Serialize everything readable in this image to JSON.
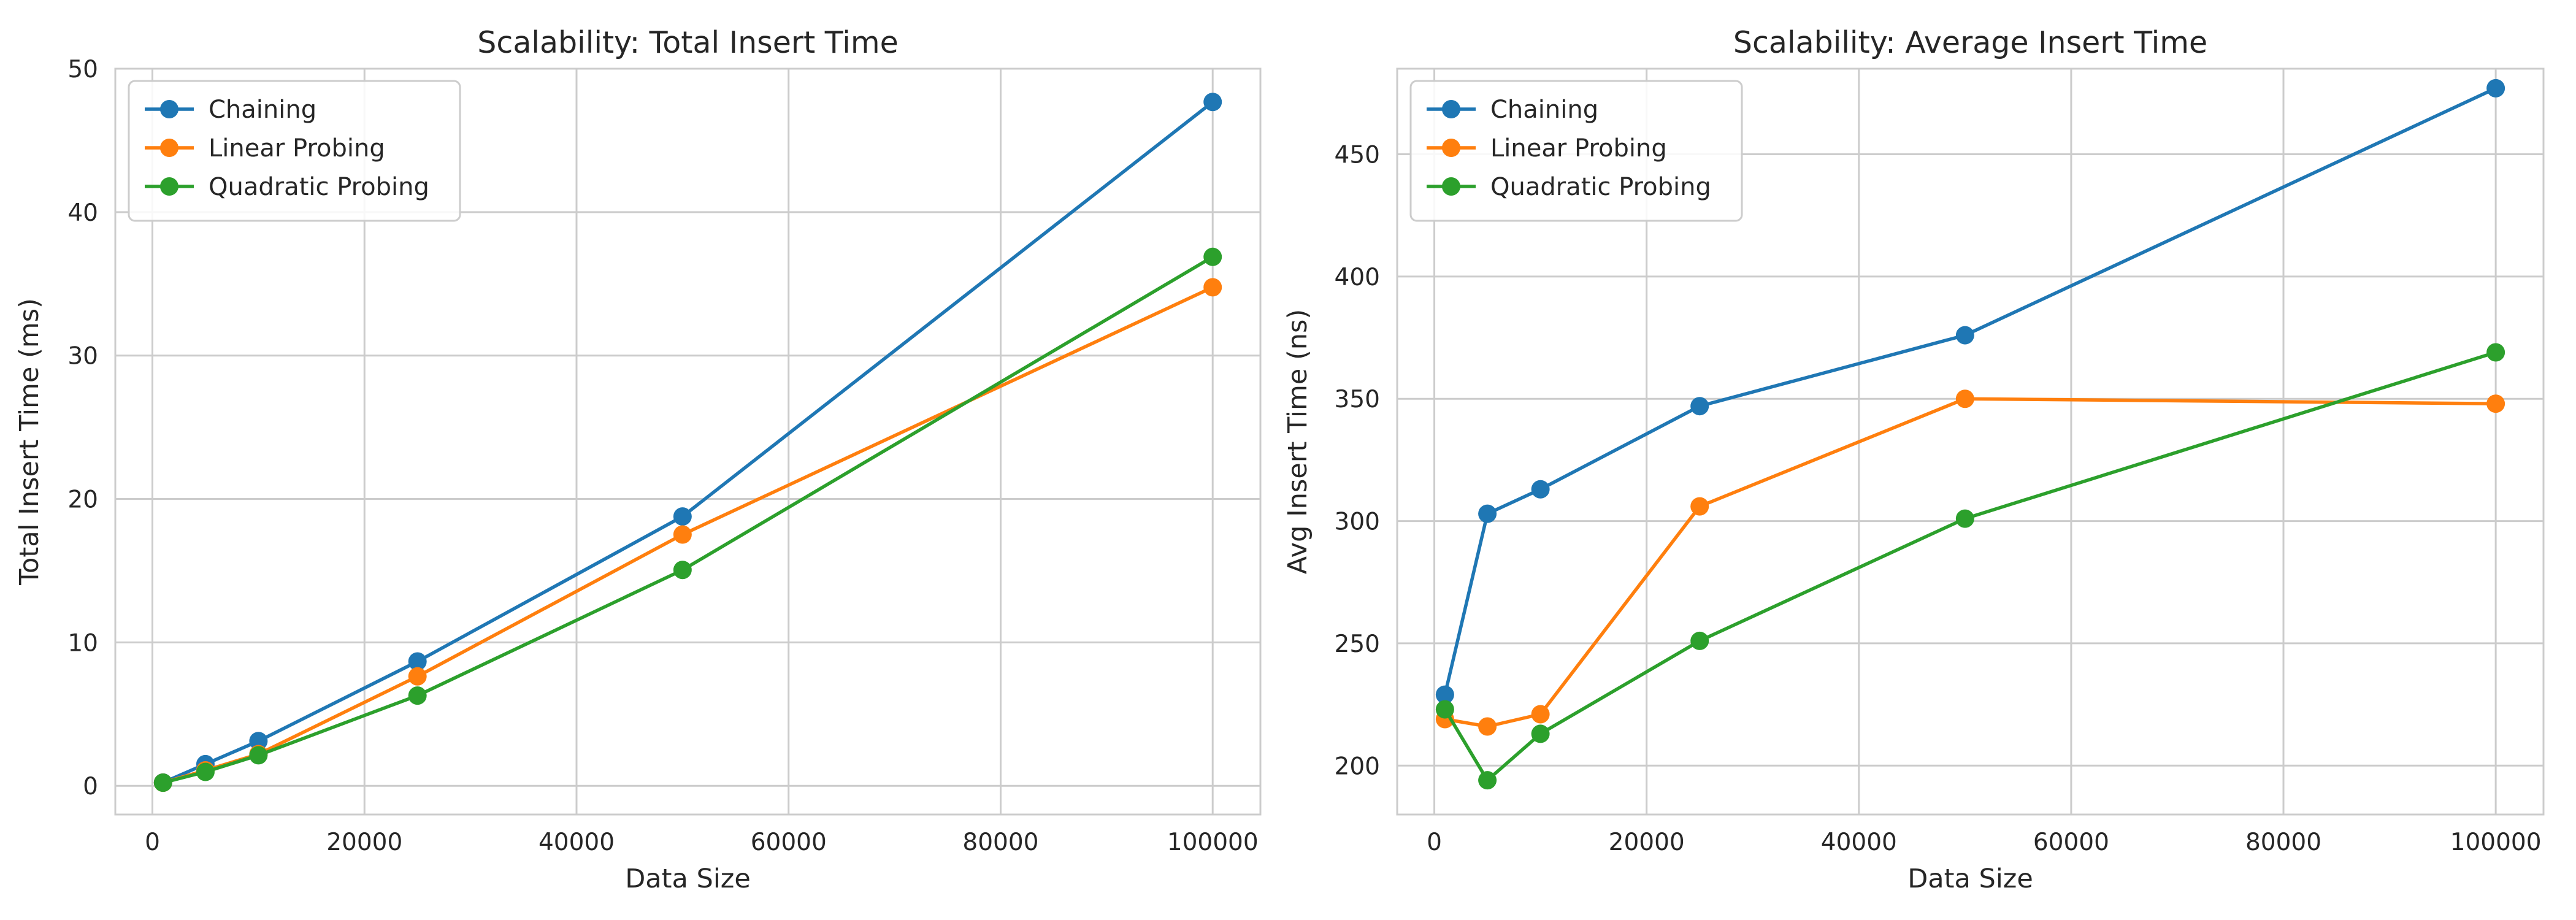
{
  "chart_data": [
    {
      "type": "line",
      "title": "Scalability: Total Insert Time",
      "xlabel": "Data Size",
      "ylabel": "Total Insert Time (ms)",
      "xlim": [
        -3500,
        104500
      ],
      "ylim": [
        -2.0,
        50.0
      ],
      "xticks": [
        0,
        20000,
        40000,
        60000,
        80000,
        100000
      ],
      "yticks": [
        0,
        10,
        20,
        30,
        40,
        50
      ],
      "grid": true,
      "legend_position": "top-left",
      "x": [
        1000,
        5000,
        10000,
        25000,
        50000,
        100000
      ],
      "series": [
        {
          "name": "Chaining",
          "color": "#1f77b4",
          "values": [
            0.23,
            1.51,
            3.12,
            8.67,
            18.78,
            47.68
          ]
        },
        {
          "name": "Linear Probing",
          "color": "#ff7f0e",
          "values": [
            0.22,
            1.08,
            2.21,
            7.63,
            17.52,
            34.76
          ]
        },
        {
          "name": "Quadratic Probing",
          "color": "#2ca02c",
          "values": [
            0.22,
            0.97,
            2.13,
            6.29,
            15.05,
            36.88
          ]
        }
      ]
    },
    {
      "type": "line",
      "title": "Scalability: Average Insert Time",
      "xlabel": "Data Size",
      "ylabel": "Avg Insert Time (ns)",
      "xlim": [
        -3500,
        104500
      ],
      "ylim": [
        180,
        485
      ],
      "xticks": [
        0,
        20000,
        40000,
        60000,
        80000,
        100000
      ],
      "yticks": [
        200,
        250,
        300,
        350,
        400,
        450
      ],
      "grid": true,
      "legend_position": "top-left",
      "x": [
        1000,
        5000,
        10000,
        25000,
        50000,
        100000
      ],
      "series": [
        {
          "name": "Chaining",
          "color": "#1f77b4",
          "values": [
            229,
            303,
            313,
            347,
            376,
            477
          ]
        },
        {
          "name": "Linear Probing",
          "color": "#ff7f0e",
          "values": [
            219,
            216,
            221,
            306,
            350,
            348
          ]
        },
        {
          "name": "Quadratic Probing",
          "color": "#2ca02c",
          "values": [
            223,
            194,
            213,
            251,
            301,
            369
          ]
        }
      ]
    }
  ]
}
